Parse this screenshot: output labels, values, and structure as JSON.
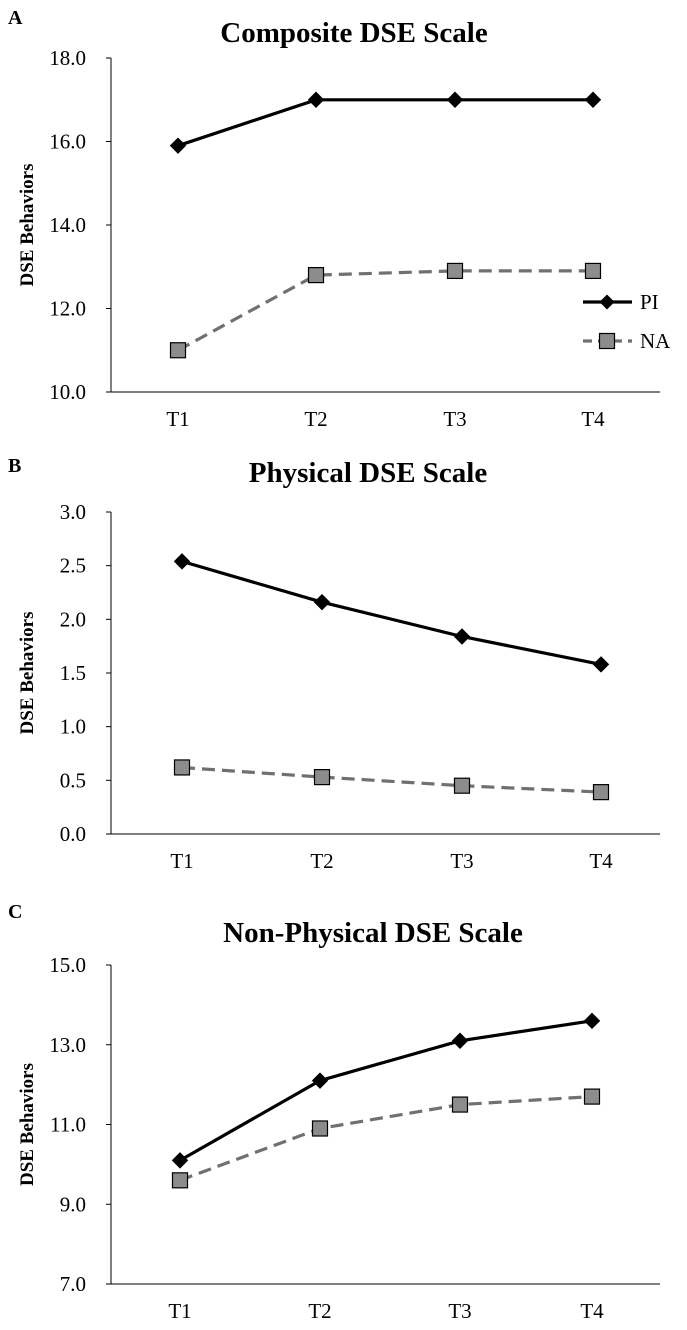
{
  "colors": {
    "pi": "#000000",
    "na_line": "#707070",
    "na_marker_fill": "#8c8c8c",
    "na_marker_stroke": "#000000",
    "axis": "#000000"
  },
  "legend": {
    "pi": "PI",
    "na": "NA",
    "placement": "inside-bottom-right (panel A only)"
  },
  "chart_data": [
    {
      "type": "line",
      "panel": "A",
      "title": "Composite DSE Scale",
      "xlabel": "",
      "ylabel": "DSE Behaviors",
      "categories": [
        "T1",
        "T2",
        "T3",
        "T4"
      ],
      "ylim": [
        10.0,
        18.0
      ],
      "yticks": [
        "10.0",
        "12.0",
        "14.0",
        "16.0",
        "18.0"
      ],
      "grid": false,
      "legend": true,
      "series": [
        {
          "name": "PI",
          "marker": "diamond",
          "line": "solid",
          "values": [
            15.9,
            17.0,
            17.0,
            17.0
          ]
        },
        {
          "name": "NA",
          "marker": "square",
          "line": "dashed",
          "values": [
            11.0,
            12.8,
            12.9,
            12.9
          ]
        }
      ]
    },
    {
      "type": "line",
      "panel": "B",
      "title": "Physical DSE Scale",
      "xlabel": "",
      "ylabel": "DSE Behaviors",
      "categories": [
        "T1",
        "T2",
        "T3",
        "T4"
      ],
      "ylim": [
        0.0,
        3.0
      ],
      "yticks": [
        "0.0",
        "0.5",
        "1.0",
        "1.5",
        "2.0",
        "2.5",
        "3.0"
      ],
      "grid": false,
      "legend": false,
      "series": [
        {
          "name": "PI",
          "marker": "diamond",
          "line": "solid",
          "values": [
            2.54,
            2.16,
            1.84,
            1.58
          ]
        },
        {
          "name": "NA",
          "marker": "square",
          "line": "dashed",
          "values": [
            0.62,
            0.53,
            0.45,
            0.39
          ]
        }
      ]
    },
    {
      "type": "line",
      "panel": "C",
      "title": "Non-Physical DSE Scale",
      "xlabel": "",
      "ylabel": "DSE Behaviors",
      "categories": [
        "T1",
        "T2",
        "T3",
        "T4"
      ],
      "ylim": [
        7.0,
        15.0
      ],
      "yticks": [
        "7.0",
        "9.0",
        "11.0",
        "13.0",
        "15.0"
      ],
      "grid": false,
      "legend": false,
      "series": [
        {
          "name": "PI",
          "marker": "diamond",
          "line": "solid",
          "values": [
            10.1,
            12.1,
            13.1,
            13.6
          ]
        },
        {
          "name": "NA",
          "marker": "square",
          "line": "dashed",
          "values": [
            9.6,
            10.9,
            11.5,
            11.7
          ]
        }
      ]
    }
  ]
}
